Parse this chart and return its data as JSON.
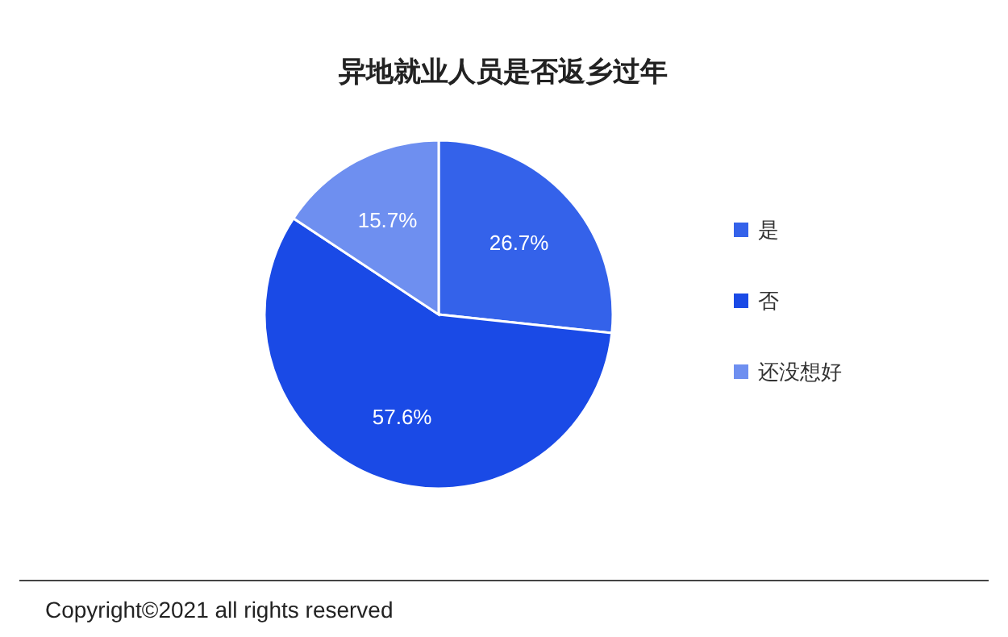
{
  "chart_data": {
    "type": "pie",
    "title": "异地就业人员是否返乡过年",
    "categories": [
      "是",
      "否",
      "还没想好"
    ],
    "values": [
      26.7,
      57.6,
      15.7
    ],
    "colors": [
      "#3462ea",
      "#1a4ae6",
      "#6e8ff0"
    ],
    "value_labels": [
      "26.7%",
      "57.6%",
      "15.7%"
    ],
    "legend": "right",
    "annotations": [
      "Copyright©2021 all rights reserved"
    ]
  }
}
